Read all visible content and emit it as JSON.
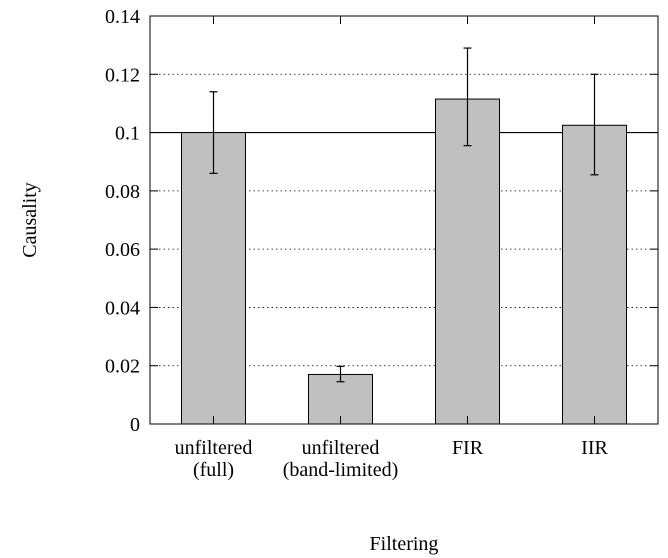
{
  "chart_data": {
    "type": "bar",
    "title": "",
    "xlabel": "Filtering",
    "ylabel": "Causality",
    "ylim": [
      0,
      0.14
    ],
    "yticks": [
      "0",
      "0.02",
      "0.04",
      "0.06",
      "0.08",
      "0.1",
      "0.12",
      "0.14"
    ],
    "grid": "horizontal dotted",
    "reference_line": 0.1,
    "categories": [
      [
        "unfiltered",
        "(full)"
      ],
      [
        "unfiltered",
        "(band-limited)"
      ],
      [
        "FIR"
      ],
      [
        "IIR"
      ]
    ],
    "values": [
      0.1,
      0.017,
      0.1115,
      0.1025
    ],
    "error_low": [
      0.086,
      0.0145,
      0.0955,
      0.0855
    ],
    "error_high": [
      0.114,
      0.0198,
      0.129,
      0.12
    ],
    "bar_color": "#c0c0c0"
  }
}
